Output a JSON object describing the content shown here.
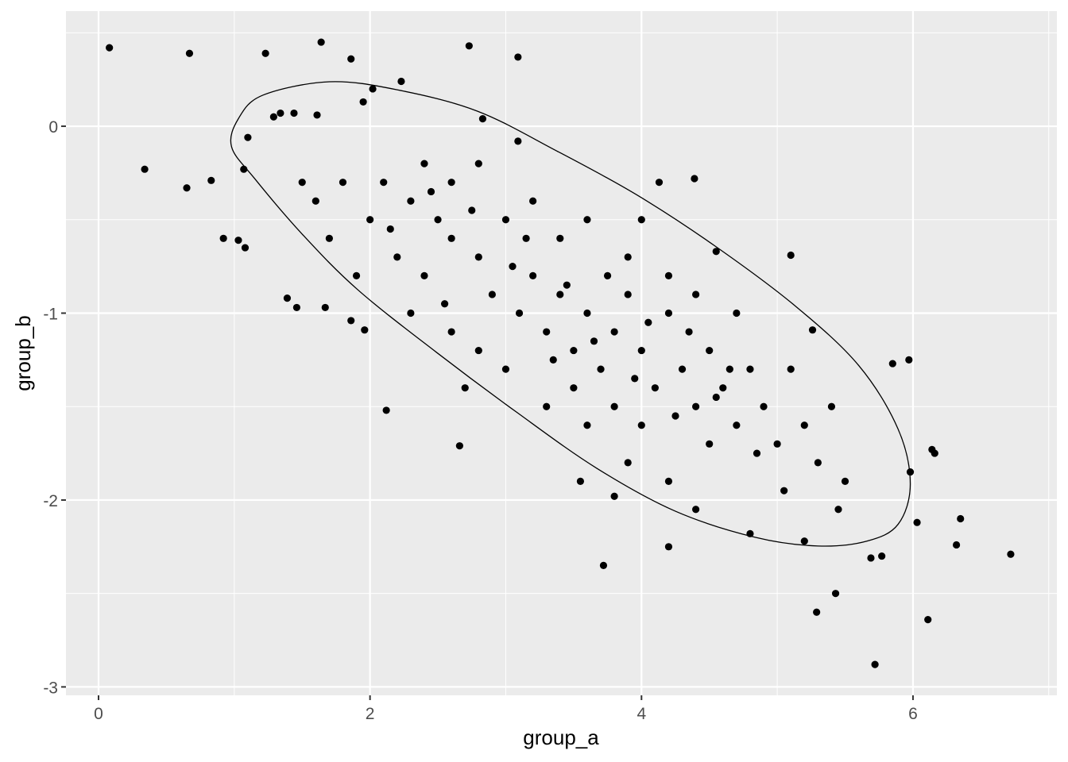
{
  "chart_data": {
    "type": "scatter",
    "x_label": "group_a",
    "y_label": "group_b",
    "color": "#000000",
    "grid": true,
    "xlim": [
      -0.24,
      7.06
    ],
    "ylim": [
      -3.045,
      0.616
    ],
    "xticks": [
      0,
      2,
      4,
      6
    ],
    "yticks": [
      0,
      -1,
      -2,
      -3
    ],
    "x_minor_breaks": [
      1,
      3,
      5,
      7
    ],
    "y_minor_breaks": [
      0.5,
      -0.5,
      -1.5,
      -2.5
    ],
    "x": [
      0.08,
      0.67,
      1.23,
      1.64,
      1.86,
      2.73,
      3.09,
      2.23,
      0.34,
      0.65,
      0.83,
      0.92,
      1.03,
      1.08,
      1.1,
      1.07,
      1.39,
      1.46,
      1.67,
      1.86,
      1.96,
      2.12,
      2.66,
      3.72,
      4.2,
      5.29,
      5.43,
      5.72,
      6.11,
      5.69,
      5.77,
      6.03,
      6.32,
      6.35,
      6.72,
      5.98,
      6.14,
      6.16,
      5.97,
      5.85,
      5.2,
      4.8,
      1.29,
      1.34,
      1.44,
      1.61,
      1.95,
      2.02,
      2.83,
      3.09,
      4.39,
      4.13,
      5.1,
      5.26,
      4.55,
      4.0,
      2.1,
      2.3,
      2.5,
      2.2,
      2.4,
      2.6,
      2.8,
      2.9,
      3.0,
      3.1,
      3.2,
      3.3,
      3.4,
      3.5,
      3.6,
      3.7,
      3.8,
      3.9,
      4.0,
      4.1,
      4.2,
      4.3,
      4.4,
      4.5,
      4.6,
      4.7,
      4.8,
      4.9,
      5.0,
      5.1,
      5.2,
      5.3,
      5.4,
      5.5,
      2.0,
      1.8,
      1.7,
      1.9,
      2.4,
      2.6,
      2.8,
      3.2,
      3.4,
      3.6,
      3.9,
      4.2,
      4.4,
      4.7,
      2.6,
      2.8,
      3.0,
      3.3,
      3.6,
      3.9,
      4.2,
      4.5,
      2.3,
      2.7,
      3.5,
      3.8,
      4.0,
      4.4,
      3.8,
      3.55,
      2.55,
      3.05,
      3.45,
      3.75,
      4.05,
      4.35,
      4.65,
      2.15,
      2.45,
      2.75,
      3.15,
      3.35,
      3.65,
      3.95,
      4.25,
      4.55,
      4.85,
      5.05,
      5.45,
      1.6,
      1.5
    ],
    "y": [
      0.42,
      0.39,
      0.39,
      0.45,
      0.36,
      0.43,
      0.37,
      0.24,
      -0.23,
      -0.33,
      -0.29,
      -0.6,
      -0.61,
      -0.65,
      -0.06,
      -0.23,
      -0.92,
      -0.97,
      -0.97,
      -1.04,
      -1.09,
      -1.52,
      -1.71,
      -2.35,
      -2.25,
      -2.6,
      -2.5,
      -2.88,
      -2.64,
      -2.31,
      -2.3,
      -2.12,
      -2.24,
      -2.1,
      -2.29,
      -1.85,
      -1.73,
      -1.75,
      -1.25,
      -1.27,
      -2.22,
      -2.18,
      0.05,
      0.07,
      0.07,
      0.06,
      0.13,
      0.2,
      0.04,
      -0.08,
      -0.28,
      -0.3,
      -0.69,
      -1.09,
      -0.67,
      -0.5,
      -0.3,
      -0.4,
      -0.5,
      -0.7,
      -0.8,
      -0.6,
      -0.7,
      -0.9,
      -0.5,
      -1.0,
      -0.8,
      -1.1,
      -0.9,
      -1.2,
      -1.0,
      -1.3,
      -1.1,
      -0.9,
      -1.2,
      -1.4,
      -1.0,
      -1.3,
      -1.5,
      -1.2,
      -1.4,
      -1.6,
      -1.3,
      -1.5,
      -1.7,
      -1.3,
      -1.6,
      -1.8,
      -1.5,
      -1.9,
      -0.5,
      -0.3,
      -0.6,
      -0.8,
      -0.2,
      -0.3,
      -0.2,
      -0.4,
      -0.6,
      -0.5,
      -0.7,
      -0.8,
      -0.9,
      -1.0,
      -1.1,
      -1.2,
      -1.3,
      -1.5,
      -1.6,
      -1.8,
      -1.9,
      -1.7,
      -1.0,
      -1.4,
      -1.4,
      -1.5,
      -1.6,
      -2.05,
      -1.98,
      -1.9,
      -0.95,
      -0.75,
      -0.85,
      -0.8,
      -1.05,
      -1.1,
      -1.3,
      -0.55,
      -0.35,
      -0.45,
      -0.6,
      -1.25,
      -1.15,
      -1.35,
      -1.55,
      -1.45,
      -1.75,
      -1.95,
      -2.05,
      -0.4,
      -0.3
    ],
    "ellipse": {
      "x": [
        0.98,
        1.03,
        1.21,
        1.7,
        2.2,
        2.79,
        3.37,
        3.96,
        4.54,
        5.13,
        5.6,
        5.89,
        5.98,
        5.89,
        5.66,
        5.3,
        4.84,
        4.25,
        3.67,
        3.08,
        2.49,
        1.91,
        1.5,
        1.15
      ],
      "y": [
        -0.11,
        0.04,
        0.166,
        0.238,
        0.195,
        0.081,
        -0.13,
        -0.365,
        -0.64,
        -0.96,
        -1.28,
        -1.62,
        -1.915,
        -2.13,
        -2.22,
        -2.246,
        -2.2,
        -2.06,
        -1.83,
        -1.53,
        -1.21,
        -0.875,
        -0.577,
        -0.28
      ]
    }
  }
}
